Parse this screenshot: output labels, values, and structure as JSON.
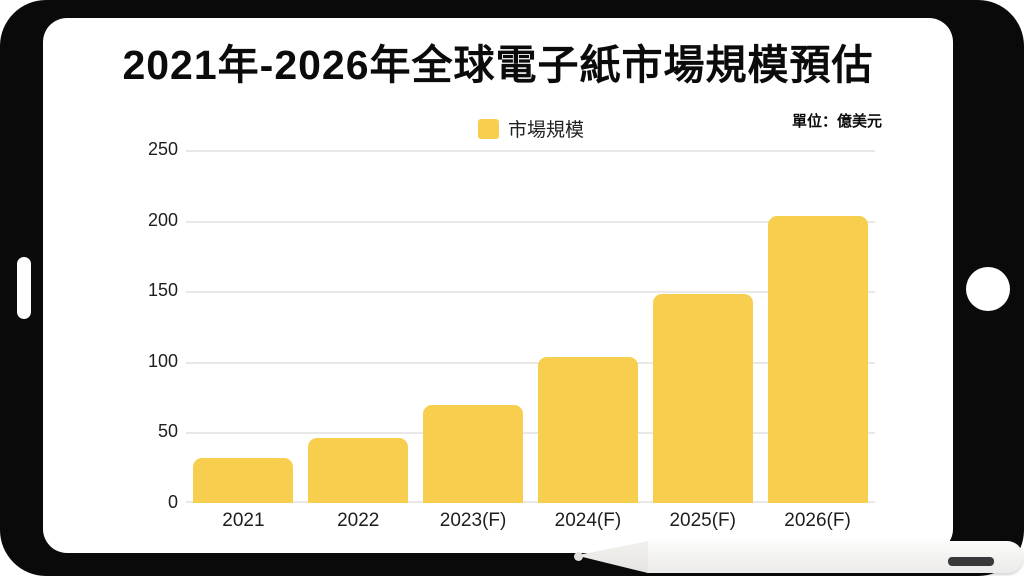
{
  "header": {
    "title": "2021年-2026年全球電子紙市場規模預估",
    "unit_label": "單位：億美元"
  },
  "legend": {
    "label": "市場規模"
  },
  "chart_data": {
    "type": "bar",
    "title": "2021年-2026年全球電子紙市場規模預估",
    "subtitle_unit": "單位：億美元",
    "series": [
      {
        "name": "市場規模",
        "values": [
          31.8,
          46.2,
          69.6,
          103.5,
          148.3,
          203.4
        ]
      }
    ],
    "categories": [
      "2021",
      "2022",
      "2023(F)",
      "2024(F)",
      "2025(F)",
      "2026(F)"
    ],
    "ylabel": "",
    "xlabel": "",
    "ylim": [
      0,
      250
    ],
    "yticks": [
      250,
      200,
      150,
      100,
      50,
      0
    ],
    "grid": "horizontal",
    "legend_position": "top-center",
    "bar_color": "#f7ce4e"
  },
  "colors": {
    "bar": "#f7ce4e",
    "frame": "#0a0a0a",
    "gridline": "#e8e8e8",
    "text": "#121212",
    "pencil_slot": "#39393b"
  }
}
